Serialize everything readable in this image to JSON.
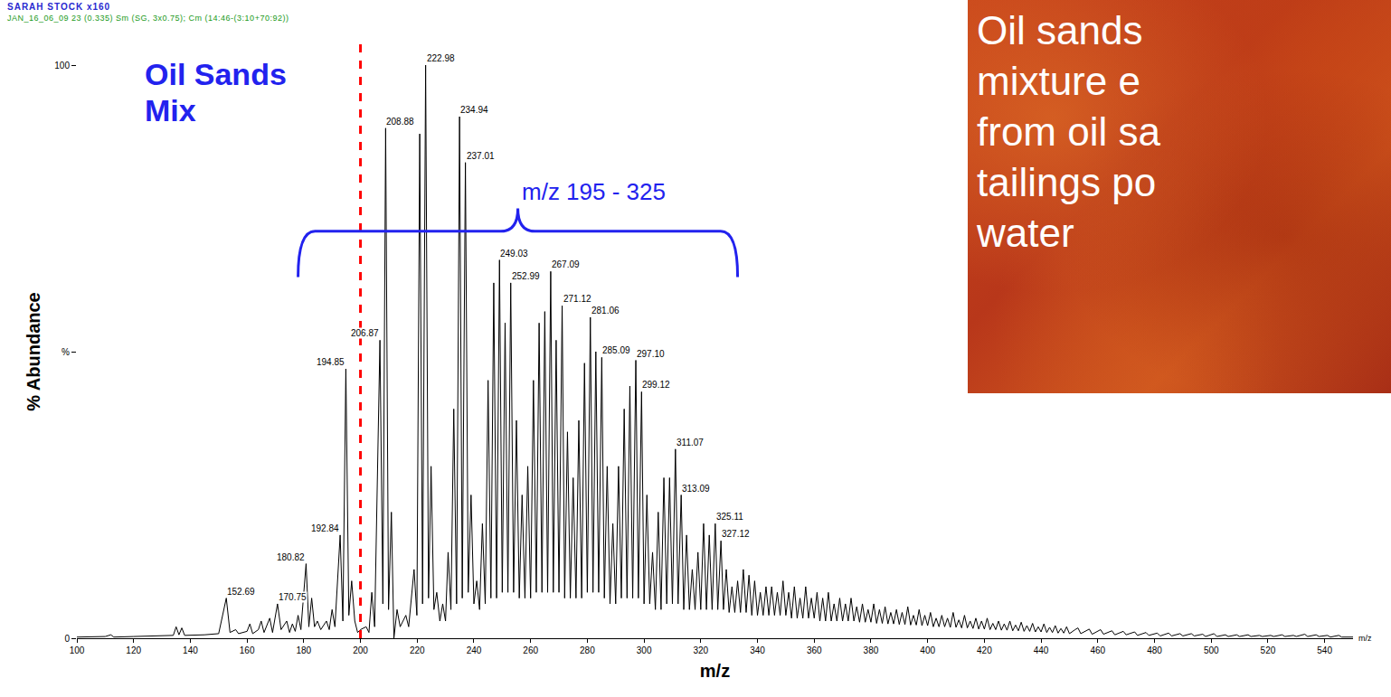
{
  "chart_data": {
    "type": "line",
    "title": "SARAH STOCK x160",
    "subtitle": "JAN_16_06_09 23 (0.335) Sm (SG, 3x0.75); Cm (14:46-(3:10+70:92))",
    "label": "Oil Sands Mix",
    "x_label": "m/z",
    "y_label": "% Abundance",
    "axis_end_label": "m/z",
    "color": "#000000",
    "grid": false,
    "xlim": [
      100,
      550
    ],
    "ylim": [
      0,
      100
    ],
    "xticks": [
      100,
      120,
      140,
      160,
      180,
      200,
      220,
      240,
      260,
      280,
      300,
      320,
      340,
      360,
      380,
      400,
      420,
      440,
      460,
      480,
      500,
      520,
      540
    ],
    "yticks": [
      0,
      {
        "value": 50,
        "label": "%"
      },
      100
    ],
    "x": [
      100,
      110,
      112,
      113,
      120,
      130,
      134,
      135,
      136,
      137,
      138,
      145,
      150,
      152.69,
      154,
      156,
      157,
      160,
      161,
      162,
      164,
      165,
      166,
      168,
      169,
      170.75,
      172,
      174,
      175,
      176,
      177,
      178,
      179,
      180.82,
      181.8,
      182.8,
      183.8,
      184.8,
      186,
      188,
      189,
      190,
      191,
      192.84,
      193.8,
      194.85,
      195.9,
      196.9,
      198,
      199,
      200,
      202,
      203,
      204,
      205,
      206.87,
      207.9,
      208.88,
      209.9,
      210.9,
      211.8,
      212.9,
      214,
      216,
      217,
      218.9,
      219.9,
      220.9,
      221.9,
      222.98,
      224,
      224.9,
      225.9,
      226.9,
      228,
      229,
      230,
      230.9,
      231.9,
      232.9,
      233.9,
      234.94,
      235.9,
      237.01,
      238,
      239,
      240,
      241,
      242,
      243,
      244,
      245,
      246,
      247,
      248,
      249.03,
      250,
      251,
      252,
      252.99,
      254,
      255,
      256,
      257,
      258,
      259,
      260,
      261,
      262,
      263,
      264,
      265,
      266,
      267.09,
      268,
      269,
      270,
      271.12,
      272,
      273,
      274,
      275,
      276,
      277,
      278,
      279,
      280,
      281.06,
      282,
      283,
      284,
      285.09,
      286,
      287,
      288,
      289,
      290,
      291,
      292,
      293,
      294,
      295,
      296,
      297.1,
      298,
      299.12,
      300,
      301,
      302,
      303,
      304,
      305,
      306,
      307,
      308,
      309,
      310,
      311.07,
      312,
      313.09,
      314,
      315,
      316,
      317,
      318,
      319,
      320,
      321,
      322,
      323,
      324,
      325.11,
      326,
      327.12,
      328,
      329,
      330,
      331,
      332,
      333,
      334,
      335,
      336,
      337,
      338,
      339,
      340,
      341,
      342,
      343,
      344,
      345,
      346,
      347,
      348,
      349,
      350,
      351,
      352,
      353,
      354,
      355,
      356,
      357,
      358,
      359,
      360,
      361,
      362,
      363,
      364,
      365,
      366,
      367,
      368,
      369,
      370,
      371,
      372,
      373,
      374,
      375,
      376,
      377,
      378,
      379,
      380,
      381,
      382,
      383,
      384,
      385,
      386,
      387,
      388,
      389,
      390,
      391,
      392,
      393,
      394,
      395,
      396,
      397,
      398,
      399,
      400,
      401,
      402,
      403,
      404,
      405,
      406,
      407,
      408,
      409,
      410,
      411,
      412,
      413,
      414,
      415,
      416,
      417,
      418,
      419,
      420,
      421,
      422,
      423,
      424,
      425,
      426,
      427,
      428,
      429,
      430,
      431,
      432,
      433,
      434,
      435,
      436,
      437,
      438,
      439,
      440,
      441,
      442,
      443,
      444,
      445,
      446,
      447,
      448,
      449,
      450,
      452,
      453,
      454,
      456,
      457,
      458,
      460,
      461,
      462,
      464,
      465,
      466,
      468,
      469,
      470,
      473,
      474,
      477,
      478,
      481,
      482,
      485,
      486,
      489,
      490,
      493,
      494,
      497,
      498,
      501,
      502,
      505,
      506,
      509,
      510,
      513,
      514,
      517,
      518,
      521,
      522,
      525,
      526,
      529,
      530,
      533,
      534,
      537,
      538,
      541,
      542,
      545,
      546,
      550
    ],
    "values": [
      0.2,
      0.3,
      0.6,
      0.2,
      0.3,
      0.4,
      0.5,
      2,
      0.6,
      1.8,
      0.5,
      0.6,
      0.8,
      7,
      1,
      1.5,
      0.8,
      1.2,
      2.5,
      0.8,
      1.5,
      3,
      1,
      3.5,
      1,
      6,
      1.5,
      3,
      1,
      2.5,
      1.2,
      4,
      1.5,
      13,
      2,
      7,
      2,
      3,
      1.5,
      3,
      1.5,
      5,
      2,
      18,
      3,
      47,
      4,
      10,
      3,
      1,
      1.5,
      2,
      1,
      8,
      2,
      52,
      6,
      89,
      5,
      22,
      0,
      5,
      2,
      4,
      2,
      12,
      4,
      88,
      6,
      100,
      7,
      30,
      5,
      8,
      3,
      6,
      3,
      15,
      5,
      40,
      6,
      91,
      7,
      83,
      8,
      25,
      6,
      10,
      5,
      20,
      6,
      45,
      7,
      62,
      7,
      66,
      8,
      55,
      8,
      62,
      8,
      38,
      7,
      25,
      7,
      30,
      7,
      45,
      8,
      55,
      8,
      57,
      8,
      64,
      8,
      52,
      8,
      58,
      7,
      36,
      7,
      28,
      7,
      38,
      7,
      48,
      8,
      56,
      8,
      50,
      8,
      49,
      7,
      30,
      6,
      20,
      6,
      30,
      7,
      40,
      7,
      44,
      7,
      48.5,
      7,
      43,
      6,
      25,
      6,
      15,
      5,
      22,
      5,
      28,
      6,
      28,
      6,
      33,
      6,
      25,
      5,
      18,
      5,
      12,
      5,
      15,
      5,
      20,
      5,
      18,
      5,
      20,
      5,
      17,
      5,
      12,
      4.5,
      9,
      4.5,
      10,
      4.5,
      12,
      4.5,
      11,
      4,
      10,
      4,
      8,
      4,
      9,
      4,
      9,
      4,
      8,
      4,
      10,
      4,
      8,
      3.5,
      9,
      3.5,
      7,
      3.5,
      9,
      3.5,
      7,
      3.5,
      8,
      3,
      7,
      3,
      8,
      3,
      6,
      3,
      7,
      3,
      6,
      3,
      7,
      3,
      5.5,
      2.8,
      6,
      2.8,
      5,
      2.8,
      6,
      2.6,
      5,
      2.6,
      5.5,
      2.5,
      4.5,
      2.5,
      5,
      2.4,
      4.5,
      2.4,
      5.5,
      2.3,
      4,
      2.3,
      5,
      2.2,
      4,
      2.2,
      4.5,
      2,
      3.5,
      2,
      4,
      2,
      3.5,
      1.9,
      4.5,
      1.9,
      3.2,
      1.8,
      4,
      1.8,
      3,
      1.7,
      3.5,
      1.6,
      3,
      1.6,
      3.5,
      1.5,
      2.6,
      1.5,
      3,
      1.4,
      2.5,
      1.4,
      3,
      1.3,
      2.3,
      1.3,
      2.8,
      1.2,
      2.2,
      1.2,
      2.6,
      1.1,
      2,
      1.1,
      2.5,
      1,
      1.9,
      1,
      2.2,
      0.9,
      1.7,
      0.9,
      2,
      0.8,
      1.5,
      1.8,
      0.8,
      1.4,
      1.6,
      0.7,
      1.2,
      1.5,
      0.7,
      1.1,
      1.3,
      0.6,
      1,
      1.2,
      0.6,
      1.1,
      0.5,
      1,
      0.5,
      0.9,
      0.4,
      0.9,
      0.4,
      0.8,
      0.4,
      0.8,
      0.4,
      0.7,
      0.3,
      0.8,
      0.3,
      0.6,
      0.3,
      0.6,
      0.3,
      0.6,
      0.3,
      0.5,
      0.3,
      0.5,
      0.3,
      0.6,
      0.3,
      0.5,
      0.3,
      0.7,
      0.3,
      0.6,
      0.3,
      0.5,
      0.2,
      0.5,
      0.2,
      0.2
    ],
    "peak_labels": [
      {
        "text": "152.69",
        "x": 152.69
      },
      {
        "text": "170.75",
        "x": 170.75
      },
      {
        "text": "180.82",
        "x": 180.82
      },
      {
        "text": "192.84",
        "x": 192.84
      },
      {
        "text": "194.85",
        "x": 194.85
      },
      {
        "text": "206.87",
        "x": 206.87
      },
      {
        "text": "208.88",
        "x": 208.88
      },
      {
        "text": "222.98",
        "x": 222.98
      },
      {
        "text": "234.94",
        "x": 234.94
      },
      {
        "text": "237.01",
        "x": 237.01
      },
      {
        "text": "249.03",
        "x": 249.03
      },
      {
        "text": "252.99",
        "x": 252.99
      },
      {
        "text": "267.09",
        "x": 267.09
      },
      {
        "text": "271.12",
        "x": 271.12
      },
      {
        "text": "281.06",
        "x": 281.06
      },
      {
        "text": "285.09",
        "x": 285.09
      },
      {
        "text": "297.10",
        "x": 297.1
      },
      {
        "text": "299.12",
        "x": 299.12
      },
      {
        "text": "311.07",
        "x": 311.07
      },
      {
        "text": "313.09",
        "x": 313.09
      },
      {
        "text": "325.11",
        "x": 325.11
      },
      {
        "text": "327.12",
        "x": 327.12
      }
    ],
    "reference_line": {
      "x": 200,
      "color": "#ff0000",
      "line_style": "dash"
    },
    "bracket": {
      "text": "m/z 195 - 325",
      "x": [
        178,
        333
      ],
      "y": 71,
      "color": "#2222ee"
    }
  },
  "panel": {
    "lines": [
      "Oil sands",
      "mixture e",
      "from oil sa",
      "tailings po",
      "water"
    ]
  }
}
